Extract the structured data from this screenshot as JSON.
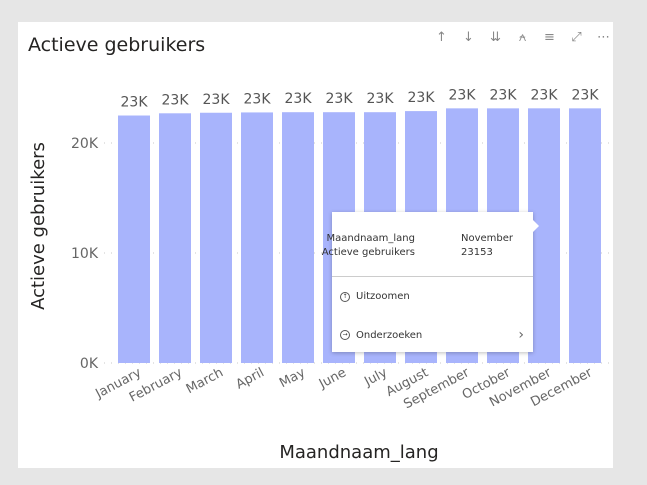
{
  "title": "Actieve gebruikers",
  "toolbar": [
    {
      "icon": "arrow-up-icon",
      "g": "↑"
    },
    {
      "icon": "arrow-down-icon",
      "g": "↓"
    },
    {
      "icon": "double-arrow-down-icon",
      "g": "⇊"
    },
    {
      "icon": "expand-hierarchy-icon",
      "g": "⍲"
    },
    {
      "icon": "filter-icon",
      "g": "≡"
    },
    {
      "icon": "focus-mode-icon",
      "g": "⤢"
    },
    {
      "icon": "more-options-icon",
      "g": "⋯"
    }
  ],
  "chart_data": {
    "type": "bar",
    "title": "Actieve gebruikers",
    "xlabel": "Maandnaam_lang",
    "ylabel": "Actieve gebruikers",
    "categories": [
      "January",
      "February",
      "March",
      "April",
      "May",
      "June",
      "July",
      "August",
      "September",
      "October",
      "November",
      "December"
    ],
    "values": [
      22500,
      22700,
      22750,
      22780,
      22800,
      22800,
      22800,
      22900,
      23150,
      23150,
      23153,
      23150
    ],
    "data_labels": [
      "23K",
      "23K",
      "23K",
      "23K",
      "23K",
      "23K",
      "23K",
      "23K",
      "23K",
      "23K",
      "23K",
      "23K"
    ],
    "yticks": [
      {
        "v": 0,
        "label": "0K"
      },
      {
        "v": 10000,
        "label": "10K"
      },
      {
        "v": 20000,
        "label": "20K"
      }
    ],
    "ylim": [
      0,
      23000
    ],
    "grid": true,
    "color": "#a8b4fc"
  },
  "tooltip": {
    "field1": "Maandnaam_lang",
    "value1": "November",
    "field2": "Actieve gebruikers",
    "value2": "23153",
    "menu1": "Uitzoomen",
    "menu2": "Onderzoeken",
    "chevron": "›"
  }
}
